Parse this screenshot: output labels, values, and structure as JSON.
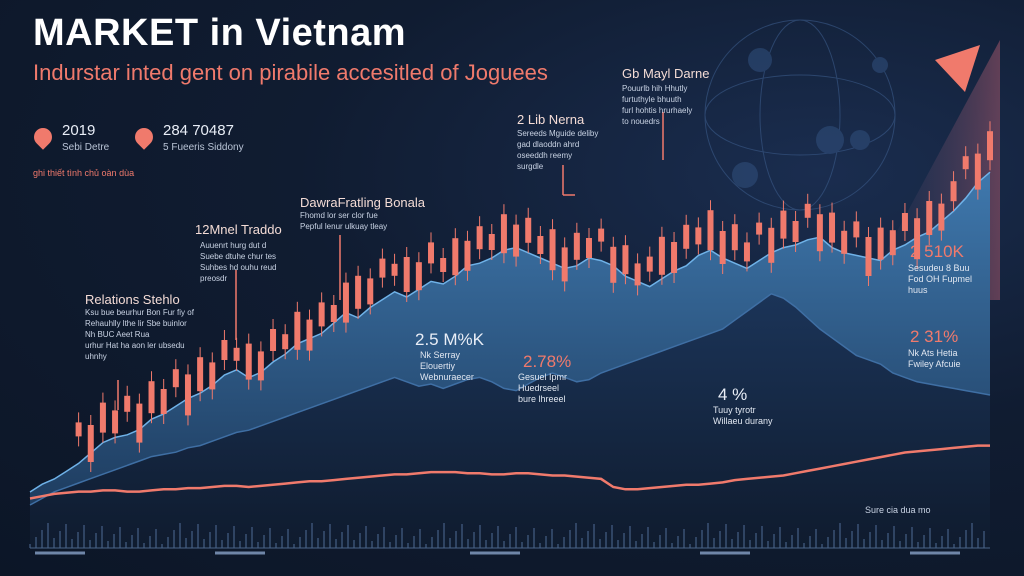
{
  "title": "MARKET in Vietnam",
  "subtitle": "Indurstar inted gent on pirabile accesitled of Joguees",
  "pins": [
    {
      "value": "2019",
      "label": "Sebi Detre"
    },
    {
      "value": "284 70487",
      "label": "5 Fueeris Siddony"
    }
  ],
  "source_note": "ghi thiết tình chủ oàn dùa",
  "annotations": [
    {
      "title": "Relations Stehlo",
      "body": "Ksu bue beurhur Bon Fur fiy of\nRehauhlly lthe lir Sbe buinlor\nNh BUC Aeet Rua\nurhur Hat ha aon ler ubsedu\nuhnhy"
    },
    {
      "title": "12Mnel Traddo",
      "body": "Auuenrt hurg dut d\nSuebe dtuhe chur tes\nSuhbes hd ouhu reud\npreosdr"
    },
    {
      "title": "DawraFratling Bonala",
      "body": "Fhomd lor ser clor fue\nPepful lenur ulkuay tleay"
    },
    {
      "title": "2 Lib Nerna",
      "body": "Sereeds Mguide deliby\ngad dlaoddn ahrd\noseeddh reemy\nsurgdle"
    },
    {
      "title": "Gb Mayl Darne",
      "body": "Pouurlb hih Hhutly\nfurtuthyle bhuuth\nfurl hohtis hrurhaely\nto nouedrs"
    }
  ],
  "stats": [
    {
      "value": "2.5 M%K",
      "label": "Nk Serray\nElouertiy\nWebnuraecer"
    },
    {
      "value": "2.78%",
      "label": "Gesuel Ipmr\nHuedrseel\nbure lhreeel"
    },
    {
      "value": "4 %",
      "label": "Tuuy tyrotr\nWillaeu durany"
    },
    {
      "value": "2 510K",
      "label": "Sesudeu 8 Buu\nFod OH Fupmel\nhuus"
    },
    {
      "value": "2 31%",
      "label": "Nk Ats Hetia\nFwiley Afcuie"
    }
  ],
  "footer_note": "Sure cia dua mo",
  "colors": {
    "accent": "#f07a6c",
    "area": "#3f78ad",
    "background": "#0f1a2c"
  },
  "chart_data": {
    "type": "line",
    "x": [
      0,
      1,
      2,
      3,
      4,
      5,
      6,
      7,
      8,
      9,
      10,
      11,
      12,
      13,
      14,
      15,
      16,
      17,
      18,
      19,
      20,
      21,
      22,
      23,
      24,
      25,
      26,
      27,
      28,
      29,
      30,
      31,
      32,
      33,
      34,
      35,
      36,
      37,
      38,
      39,
      40,
      41,
      42,
      43,
      44,
      45,
      46,
      47,
      48,
      49,
      50,
      51,
      52,
      53,
      54,
      55,
      56,
      57,
      58,
      59,
      60,
      61,
      62,
      63,
      64,
      65,
      66,
      67,
      68,
      69,
      70,
      71,
      72,
      73,
      74,
      75,
      76,
      77,
      78,
      79
    ],
    "series": [
      {
        "values": [
          5,
          8,
          10,
          13,
          16,
          20,
          24,
          26,
          27,
          29,
          33,
          35,
          38,
          41,
          43,
          46,
          50,
          52,
          49,
          51,
          55,
          58,
          62,
          64,
          66,
          70,
          74,
          72,
          76,
          79,
          82,
          80,
          83,
          86,
          85,
          88,
          92,
          93,
          95,
          98,
          99,
          97,
          95,
          93,
          91,
          92,
          95,
          94,
          92,
          88,
          86,
          84,
          87,
          90,
          92,
          96,
          98,
          95,
          93,
          91,
          94,
          97,
          99,
          100,
          102,
          103,
          99,
          97,
          96,
          95,
          94,
          98,
          100,
          103,
          105,
          109,
          113,
          118,
          124,
          128
        ]
      },
      {
        "values": [
          0,
          3,
          6,
          8,
          10,
          12,
          14,
          16,
          18,
          20,
          22,
          23,
          24,
          26,
          27,
          29,
          31,
          33,
          34,
          36,
          38,
          40,
          42,
          44,
          46,
          48,
          50,
          52,
          54,
          56,
          58,
          56,
          54,
          55,
          53,
          55,
          57,
          58,
          56,
          53,
          52,
          55,
          58,
          60,
          58,
          56,
          57,
          60,
          62,
          64,
          66,
          68,
          70,
          72,
          74,
          76,
          78,
          80,
          84,
          88,
          92,
          96,
          94,
          90,
          85,
          80,
          76,
          72,
          68,
          66,
          64,
          60,
          58,
          56,
          55,
          54,
          53,
          52,
          51,
          50
        ]
      },
      {
        "values": [
          10,
          12,
          14,
          15,
          16,
          16,
          17,
          17,
          16,
          16,
          17,
          18,
          18,
          19,
          19,
          20,
          21,
          21,
          20,
          21,
          22,
          23,
          24,
          25,
          25,
          26,
          27,
          28,
          29,
          30,
          31,
          31,
          32,
          33,
          33,
          33,
          32,
          32,
          31,
          31,
          32,
          32,
          31,
          30,
          30,
          29,
          28,
          27,
          20,
          18,
          18,
          19,
          20,
          21,
          22,
          22,
          23,
          24,
          26,
          27,
          28,
          29,
          30,
          32,
          34,
          36,
          38,
          40,
          42,
          44,
          46,
          48,
          50,
          51,
          52,
          53,
          54,
          55,
          56,
          56
        ]
      }
    ]
  }
}
